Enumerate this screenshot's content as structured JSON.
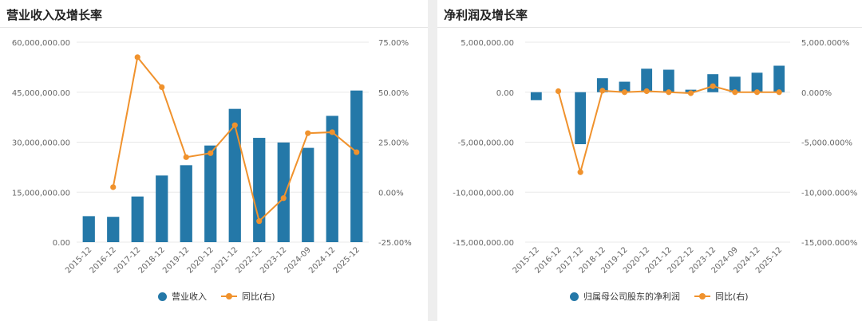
{
  "colors": {
    "bar": "#2478a8",
    "line": "#f0922d",
    "grid": "#e8e8e8"
  },
  "panels": {
    "left": {
      "title": "营业收入及增长率"
    },
    "right": {
      "title": "净利润及增长率"
    }
  },
  "chart_data": [
    {
      "type": "bar",
      "title": "营业收入及增长率",
      "categories": [
        "2015-12",
        "2016-12",
        "2017-12",
        "2018-12",
        "2019-12",
        "2020-12",
        "2021-12",
        "2022-12",
        "2023-12",
        "2024-09",
        "2024-12",
        "2025-12"
      ],
      "series": [
        {
          "name": "营业收入",
          "type": "bar",
          "axis": "left",
          "values": [
            7800000,
            7600000,
            13700000,
            20000000,
            23100000,
            29000000,
            40000000,
            31300000,
            29900000,
            28300000,
            37900000,
            45500000
          ]
        },
        {
          "name": "同比(右)",
          "type": "line",
          "axis": "right",
          "values": [
            null,
            2.5,
            67.5,
            52.5,
            17.5,
            19.5,
            33.5,
            -14.5,
            -3.0,
            29.5,
            30.0,
            20.0
          ]
        }
      ],
      "left_axis": {
        "ylim": [
          0,
          60000000
        ],
        "ticks": [
          "0.00",
          "15,000,000.00",
          "30,000,000.00",
          "45,000,000.00",
          "60,000,000.00"
        ]
      },
      "right_axis": {
        "ylim": [
          -25,
          75
        ],
        "ticks": [
          "-25.00%",
          "0.00%",
          "25.00%",
          "50.00%",
          "75.00%"
        ]
      },
      "grid": true,
      "legend": "bottom"
    },
    {
      "type": "bar",
      "title": "净利润及增长率",
      "categories": [
        "2015-12",
        "2016-12",
        "2017-12",
        "2018-12",
        "2019-12",
        "2020-12",
        "2021-12",
        "2022-12",
        "2023-12",
        "2024-09",
        "2024-12",
        "2025-12"
      ],
      "series": [
        {
          "name": "归属母公司股东的净利润",
          "type": "bar",
          "axis": "left",
          "values": [
            -800000,
            0,
            -5200000,
            1400000,
            1050000,
            2350000,
            2250000,
            250000,
            1800000,
            1550000,
            1950000,
            2650000
          ]
        },
        {
          "name": "同比(右)",
          "type": "line",
          "axis": "right",
          "values": [
            null,
            100,
            -8000,
            150,
            0,
            100,
            0,
            -100,
            600,
            0,
            0,
            0
          ]
        }
      ],
      "left_axis": {
        "ylim": [
          -15000000,
          5000000
        ],
        "ticks": [
          "-15,000,000.00",
          "-10,000,000.00",
          "-5,000,000.00",
          "0.00",
          "5,000,000.00"
        ]
      },
      "right_axis": {
        "ylim": [
          -15000,
          5000
        ],
        "ticks": [
          "-15,000.000%",
          "-10,000.000%",
          "-5,000.000%",
          "0.000%",
          "5,000.000%"
        ]
      },
      "grid": true,
      "legend": "bottom"
    }
  ]
}
